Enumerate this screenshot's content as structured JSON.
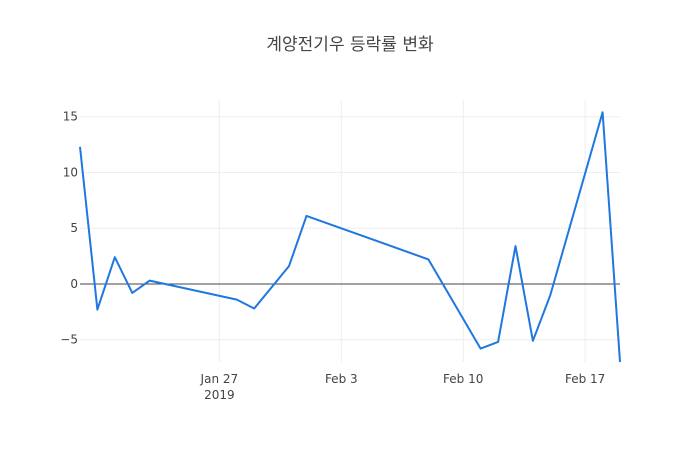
{
  "chart_data": {
    "type": "line",
    "title": "계양전기우 등락률 변화",
    "xlabel": "",
    "ylabel": "",
    "x_axis": {
      "type": "date",
      "range": [
        "2019-01-19",
        "2019-02-19"
      ],
      "ticks": [
        {
          "date": "2019-01-27",
          "label": "Jan 27",
          "sublabel": "2019"
        },
        {
          "date": "2019-02-03",
          "label": "Feb 3",
          "sublabel": ""
        },
        {
          "date": "2019-02-10",
          "label": "Feb 10",
          "sublabel": ""
        },
        {
          "date": "2019-02-17",
          "label": "Feb 17",
          "sublabel": ""
        }
      ]
    },
    "y_axis": {
      "range": [
        -7,
        16.5
      ],
      "ticks": [
        {
          "value": -5,
          "label": "−5"
        },
        {
          "value": 0,
          "label": "0"
        },
        {
          "value": 5,
          "label": "5"
        },
        {
          "value": 10,
          "label": "10"
        },
        {
          "value": 15,
          "label": "15"
        }
      ]
    },
    "grid": true,
    "series": [
      {
        "color": "#1f77e0",
        "points": [
          {
            "x": "2019-01-19",
            "y": 12.3
          },
          {
            "x": "2019-01-20",
            "y": -2.3
          },
          {
            "x": "2019-01-21",
            "y": 2.4
          },
          {
            "x": "2019-01-22",
            "y": -0.8
          },
          {
            "x": "2019-01-23",
            "y": 0.3
          },
          {
            "x": "2019-01-28",
            "y": -1.4
          },
          {
            "x": "2019-01-29",
            "y": -2.2
          },
          {
            "x": "2019-01-31",
            "y": 1.6
          },
          {
            "x": "2019-02-01",
            "y": 6.1
          },
          {
            "x": "2019-02-08",
            "y": 2.2
          },
          {
            "x": "2019-02-11",
            "y": -5.8
          },
          {
            "x": "2019-02-12",
            "y": -5.2
          },
          {
            "x": "2019-02-13",
            "y": 3.4
          },
          {
            "x": "2019-02-14",
            "y": -5.1
          },
          {
            "x": "2019-02-15",
            "y": -1.0
          },
          {
            "x": "2019-02-18",
            "y": 15.4
          },
          {
            "x": "2019-02-19",
            "y": -7.0
          }
        ]
      }
    ]
  }
}
